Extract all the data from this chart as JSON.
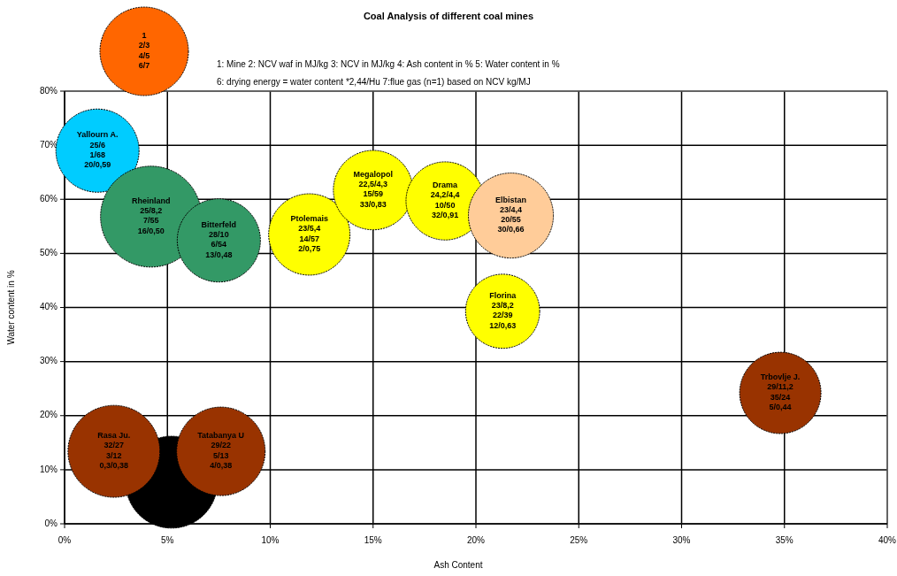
{
  "chart_data": {
    "type": "bubble",
    "title": "Coal Analysis of different coal mines",
    "xlabel": "Ash Content",
    "ylabel": "Water content in %",
    "x": [
      5.2,
      1.6,
      4.2,
      7.5,
      11.9,
      15,
      18.5,
      21.7,
      21.3,
      34.8,
      2.4,
      7.6
    ],
    "values": [
      7.7,
      69,
      56.8,
      52.4,
      53.5,
      61.7,
      59.7,
      57,
      39.3,
      24.2,
      13.4,
      13.4
    ],
    "sizes": [
      0.83,
      0.68,
      1,
      0.68,
      0.65,
      0.62,
      0.6,
      0.71,
      0.54,
      0.65,
      0.83,
      0.77
    ],
    "colors": [
      "#000000",
      "#00ccff",
      "#339966",
      "#339966",
      "#ffff00",
      "#ffff00",
      "#ffff00",
      "#ffcc99",
      "#ffff00",
      "#993300",
      "#993300",
      "#993300"
    ],
    "value_labels": [
      null,
      "Yallourn A.\n25/6\n1/68\n20/0,59",
      "Rheinland\n25/8,2\n7/55\n16/0,50",
      "Bitterfeld\n28/10\n6/54\n13/0,48",
      "Ptolemais\n23/5,4\n14/57\n2/0,75",
      "Megalopol\n22,5/4,3\n15/59\n33/0,83",
      "Drama\n24,2/4,4\n10/50\n32/0,91",
      "Elbistan\n23/4,4\n20/55\n30/0,66",
      "Florina\n23/8,2\n22/39\n12/0,63",
      "Trbovlje J.\n29/11,2\n35/24\n5/0,44",
      "Rasa Ju.\n32/27\n3/12\n0,3/0,38",
      "Tatabanya U\n29/22\n5/13\n4/0,38"
    ],
    "xlim": [
      0,
      40
    ],
    "xticks": [
      {
        "value": 0,
        "label": "0%"
      },
      {
        "value": 5,
        "label": "5%"
      },
      {
        "value": 10,
        "label": "10%"
      },
      {
        "value": 15,
        "label": "15%"
      },
      {
        "value": 20,
        "label": "20%"
      },
      {
        "value": 25,
        "label": "25%"
      },
      {
        "value": 30,
        "label": "30%"
      },
      {
        "value": 35,
        "label": "35%"
      },
      {
        "value": 40,
        "label": "40%"
      }
    ],
    "ylim": [
      0,
      80
    ],
    "yticks": [
      {
        "value": 0,
        "label": "0%"
      },
      {
        "value": 10,
        "label": "10%"
      },
      {
        "value": 20,
        "label": "20%"
      },
      {
        "value": 30,
        "label": "30%"
      },
      {
        "value": 40,
        "label": "40%"
      },
      {
        "value": 50,
        "label": "50%"
      },
      {
        "value": 60,
        "label": "60%"
      },
      {
        "value": 70,
        "label": "70%"
      },
      {
        "value": 80,
        "label": "80%"
      }
    ],
    "grid": true,
    "annotations": [
      "1\n2/3\n4/5\n6/7",
      "1: Mine  2: NCV waf in MJ/kg   3: NCV in MJ/kg   4: Ash content  in %  5: Water content in %",
      "6:  drying energy = water content *2,44/Hu    7:flue gas  (n=1) based on NCV  kg/MJ"
    ]
  }
}
